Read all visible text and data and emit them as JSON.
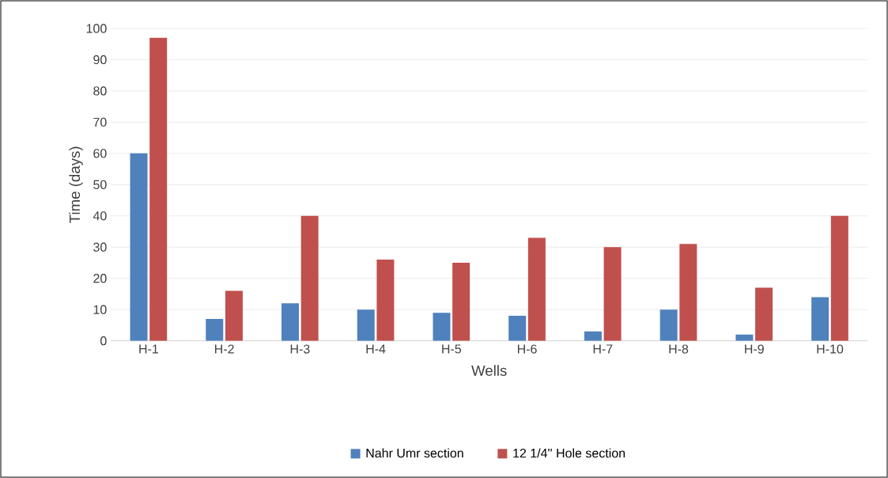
{
  "chart_data": {
    "type": "bar",
    "xlabel": "Wells",
    "ylabel": "Time (days)",
    "categories": [
      "H-1",
      "H-2",
      "H-3",
      "H-4",
      "H-5",
      "H-6",
      "H-7",
      "H-8",
      "H-9",
      "H-10"
    ],
    "series": [
      {
        "name": "Nahr Umr section",
        "color": "#4f81bd",
        "values": [
          60,
          7,
          12,
          10,
          9,
          8,
          3,
          10,
          2,
          14
        ]
      },
      {
        "name": "12 1/4'' Hole section",
        "color": "#c0504d",
        "values": [
          97,
          16,
          40,
          26,
          25,
          33,
          30,
          31,
          17,
          40
        ]
      }
    ],
    "ylim": [
      0,
      100
    ],
    "yticks": [
      0,
      10,
      20,
      30,
      40,
      50,
      60,
      70,
      80,
      90,
      100
    ],
    "grid": "y",
    "legend": "bottom"
  }
}
